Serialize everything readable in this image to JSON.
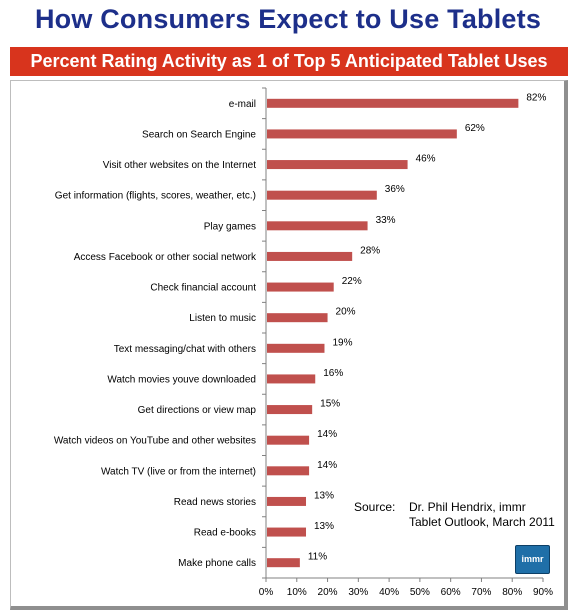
{
  "page": {
    "title": "How Consumers Expect to Use Tablets",
    "banner": "Percent Rating Activity as 1 of Top 5 Anticipated Tablet Uses",
    "source_label": "Source:",
    "source_line1": "Dr. Phil Hendrix, immr",
    "source_line2": "Tablet Outlook, March 2011",
    "logo_text": "immr"
  },
  "colors": {
    "title": "#1d2f8a",
    "banner_bg": "#d8341d",
    "bar": "#c0504d"
  },
  "chart_data": {
    "type": "bar",
    "orientation": "horizontal",
    "title": "Percent Rating Activity as 1 of Top 5 Anticipated Tablet Uses",
    "xlabel": "",
    "ylabel": "",
    "xlim": [
      0,
      90
    ],
    "xticks": [
      "0%",
      "10%",
      "20%",
      "30%",
      "40%",
      "50%",
      "60%",
      "70%",
      "80%",
      "90%"
    ],
    "grid": false,
    "categories": [
      "e-mail",
      "Search on Search Engine",
      "Visit other websites on the Internet",
      "Get information (flights, scores, weather, etc.)",
      "Play games",
      "Access Facebook or other social network",
      "Check financial account",
      "Listen to music",
      "Text messaging/chat with others",
      "Watch movies youve downloaded",
      "Get directions or view map",
      "Watch videos on YouTube and other websites",
      "Watch TV (live or from the internet)",
      "Read news stories",
      "Read e-books",
      "Make phone calls"
    ],
    "values": [
      82,
      62,
      46,
      36,
      33,
      28,
      22,
      20,
      19,
      16,
      15,
      14,
      14,
      13,
      13,
      11
    ],
    "value_labels": [
      "82%",
      "62%",
      "46%",
      "36%",
      "33%",
      "28%",
      "22%",
      "20%",
      "19%",
      "16%",
      "15%",
      "14%",
      "14%",
      "13%",
      "13%",
      "11%"
    ]
  }
}
